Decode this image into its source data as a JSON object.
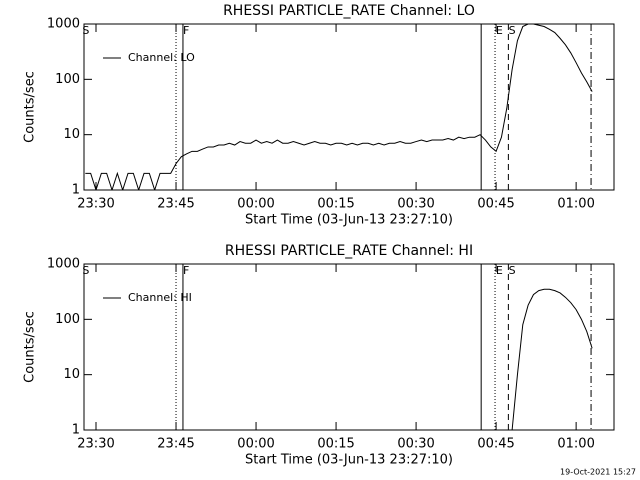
{
  "chart_data": [
    {
      "type": "line",
      "title": "RHESSI PARTICLE_RATE Channel: LO",
      "xlabel": "Start Time (03-Jun-13 23:27:10)",
      "ylabel": "Counts/sec",
      "xlim": [
        1407.75,
        1507.1
      ],
      "ylim": [
        1,
        1000
      ],
      "log_y": true,
      "xticks": [
        {
          "value": 1410,
          "label": "23:30"
        },
        {
          "value": 1425,
          "label": "23:45"
        },
        {
          "value": 1440,
          "label": "00:00"
        },
        {
          "value": 1455,
          "label": "00:15"
        },
        {
          "value": 1470,
          "label": "00:30"
        },
        {
          "value": 1485,
          "label": "00:45"
        },
        {
          "value": 1500,
          "label": "01:00"
        }
      ],
      "yticks": [
        1,
        10,
        100,
        1000
      ],
      "legend": "upper left",
      "vlines": [
        {
          "x": 1425,
          "style": "dotted"
        },
        {
          "x": 1426.3,
          "style": "solid"
        },
        {
          "x": 1482.2,
          "style": "solid"
        },
        {
          "x": 1484.8,
          "style": "dotted"
        },
        {
          "x": 1487.3,
          "style": "dashed"
        },
        {
          "x": 1502.8,
          "style": "dashdot"
        }
      ],
      "event_labels": [
        {
          "x": 1408.1,
          "label": "S"
        },
        {
          "x": 1426.9,
          "label": "F"
        },
        {
          "x": 1485.6,
          "label": "E"
        },
        {
          "x": 1488,
          "label": "S"
        }
      ],
      "x": [
        1408,
        1409,
        1410,
        1411,
        1412,
        1413,
        1414,
        1415,
        1416,
        1417,
        1418,
        1419,
        1420,
        1421,
        1422,
        1423,
        1424,
        1425,
        1426,
        1427,
        1428,
        1429,
        1430,
        1431,
        1432,
        1433,
        1434,
        1435,
        1436,
        1437,
        1438,
        1439,
        1440,
        1441,
        1442,
        1443,
        1444,
        1445,
        1446,
        1447,
        1448,
        1449,
        1450,
        1451,
        1452,
        1453,
        1454,
        1455,
        1456,
        1457,
        1458,
        1459,
        1460,
        1461,
        1462,
        1463,
        1464,
        1465,
        1466,
        1467,
        1468,
        1469,
        1470,
        1471,
        1472,
        1473,
        1474,
        1475,
        1476,
        1477,
        1478,
        1479,
        1480,
        1481,
        1482,
        1483,
        1484,
        1485,
        1486,
        1487,
        1488,
        1489,
        1490,
        1491,
        1492,
        1493,
        1494,
        1495,
        1496,
        1497,
        1498,
        1499,
        1500,
        1501,
        1502,
        1503
      ],
      "series": [
        {
          "name": "Channel: LO",
          "color": "#000000",
          "values": [
            2,
            2,
            1,
            2,
            2,
            1,
            2,
            1,
            2,
            2,
            1,
            2,
            2,
            1,
            2,
            2,
            2,
            3,
            4,
            4.5,
            5,
            5,
            5.5,
            6,
            6,
            6.5,
            6.5,
            7,
            6.5,
            7.5,
            7,
            7,
            8,
            7,
            7.5,
            7,
            8,
            7,
            7,
            7.5,
            7,
            6.5,
            7,
            7.5,
            7,
            7,
            6.5,
            7,
            7,
            6.5,
            7,
            6.5,
            7,
            7,
            6.5,
            7,
            6.5,
            7,
            7,
            7.5,
            7,
            7,
            7.5,
            8,
            7.5,
            8,
            8,
            8,
            8.5,
            8,
            9,
            8.5,
            9,
            9,
            10,
            8,
            6,
            5,
            9,
            30,
            150,
            500,
            900,
            1000,
            1000,
            950,
            900,
            800,
            700,
            550,
            420,
            300,
            200,
            130,
            90,
            60
          ]
        }
      ]
    },
    {
      "type": "line",
      "title": "RHESSI PARTICLE_RATE Channel: HI",
      "xlabel": "Start Time (03-Jun-13 23:27:10)",
      "ylabel": "Counts/sec",
      "xlim": [
        1407.75,
        1507.1
      ],
      "ylim": [
        1,
        1000
      ],
      "log_y": true,
      "xticks": [
        {
          "value": 1410,
          "label": "23:30"
        },
        {
          "value": 1425,
          "label": "23:45"
        },
        {
          "value": 1440,
          "label": "00:00"
        },
        {
          "value": 1455,
          "label": "00:15"
        },
        {
          "value": 1470,
          "label": "00:30"
        },
        {
          "value": 1485,
          "label": "00:45"
        },
        {
          "value": 1500,
          "label": "01:00"
        }
      ],
      "yticks": [
        1,
        10,
        100,
        1000
      ],
      "legend": "upper left",
      "vlines": [
        {
          "x": 1425,
          "style": "dotted"
        },
        {
          "x": 1426.3,
          "style": "solid"
        },
        {
          "x": 1482.2,
          "style": "solid"
        },
        {
          "x": 1484.8,
          "style": "dotted"
        },
        {
          "x": 1487.3,
          "style": "dashed"
        },
        {
          "x": 1502.8,
          "style": "dashdot"
        }
      ],
      "event_labels": [
        {
          "x": 1408.1,
          "label": "S"
        },
        {
          "x": 1426.9,
          "label": "F"
        },
        {
          "x": 1485.6,
          "label": "E"
        },
        {
          "x": 1488,
          "label": "S"
        }
      ],
      "x": [
        1488,
        1489,
        1490,
        1491,
        1492,
        1493,
        1494,
        1495,
        1496,
        1497,
        1498,
        1499,
        1500,
        1501,
        1502,
        1503
      ],
      "series": [
        {
          "name": "Channel: HI",
          "color": "#000000",
          "values": [
            1,
            10,
            80,
            180,
            280,
            330,
            350,
            350,
            330,
            300,
            250,
            200,
            150,
            100,
            60,
            30
          ]
        }
      ]
    }
  ],
  "footer": "19-Oct-2021 15:27"
}
